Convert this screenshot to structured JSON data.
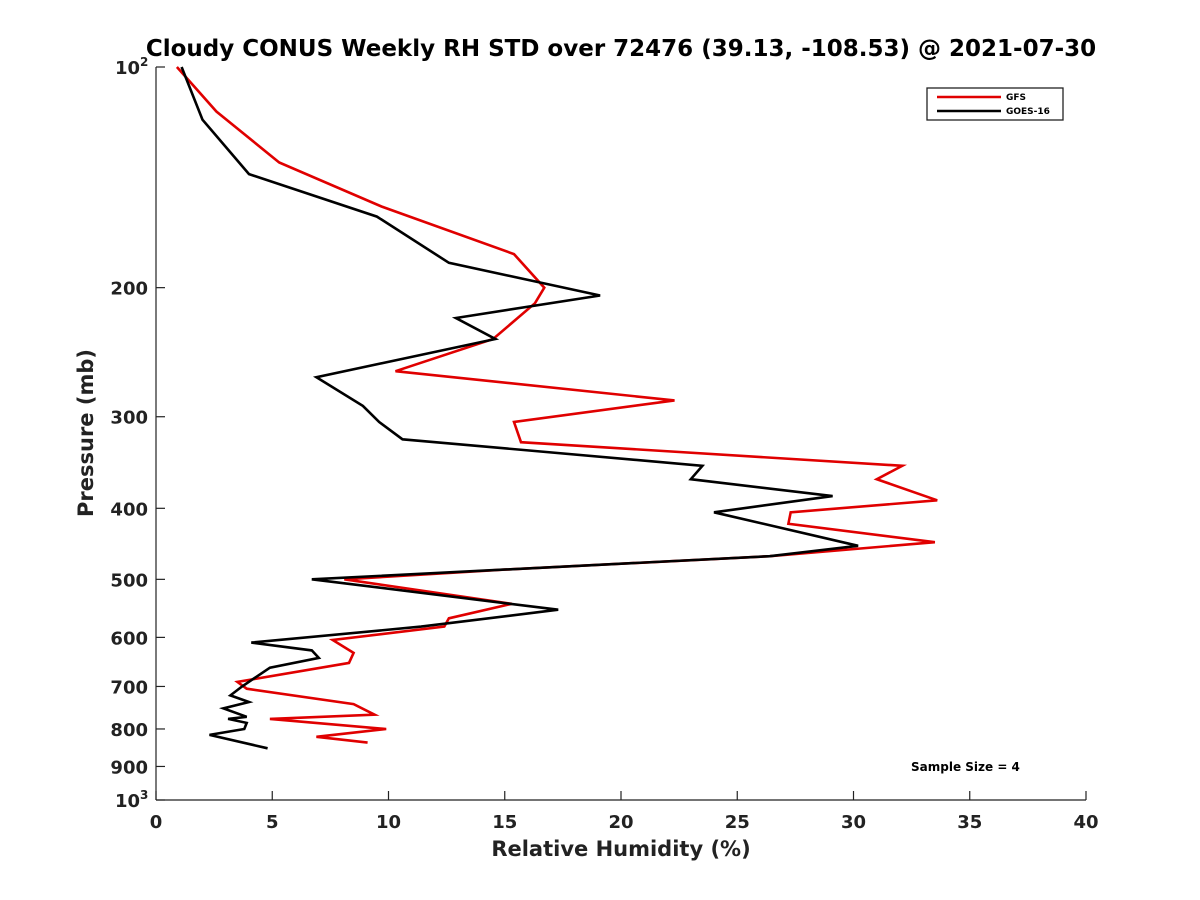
{
  "chart_data": {
    "type": "line",
    "title": "Cloudy CONUS Weekly RH STD over 72476 (39.13, -108.53) @ 2021-07-30",
    "xlabel": "Relative Humidity (%)",
    "ylabel": "Pressure (mb)",
    "xlim": [
      0,
      40
    ],
    "ylim": [
      100,
      1000
    ],
    "yscale": "log",
    "y_reversed": true,
    "grid": false,
    "legend_position": "top-right",
    "x_ticks": [
      0,
      5,
      10,
      15,
      20,
      25,
      30,
      35,
      40
    ],
    "x_tick_labels": [
      "0",
      "5",
      "10",
      "15",
      "20",
      "25",
      "30",
      "35",
      "40"
    ],
    "y_ticks": [
      100,
      200,
      300,
      400,
      500,
      600,
      700,
      800,
      900,
      1000
    ],
    "y_tick_labels": [
      {
        "base": "10",
        "sup": "2"
      },
      {
        "base": "200"
      },
      {
        "base": "300"
      },
      {
        "base": "400"
      },
      {
        "base": "500"
      },
      {
        "base": "600"
      },
      {
        "base": "700"
      },
      {
        "base": "800"
      },
      {
        "base": "900"
      },
      {
        "base": "10",
        "sup": "3"
      }
    ],
    "series": [
      {
        "name": "GFS",
        "color": "#e00000",
        "points": [
          [
            0.9,
            100
          ],
          [
            2.6,
            115
          ],
          [
            5.3,
            135
          ],
          [
            9.7,
            155
          ],
          [
            15.4,
            180
          ],
          [
            16.7,
            200
          ],
          [
            16.3,
            210
          ],
          [
            14.5,
            235
          ],
          [
            10.3,
            260
          ],
          [
            22.3,
            285
          ],
          [
            15.4,
            305
          ],
          [
            15.7,
            325
          ],
          [
            32.1,
            350
          ],
          [
            31.0,
            365
          ],
          [
            33.6,
            390
          ],
          [
            27.3,
            405
          ],
          [
            27.2,
            420
          ],
          [
            33.5,
            445
          ],
          [
            26.4,
            465
          ],
          [
            15.0,
            485
          ],
          [
            8.1,
            500
          ],
          [
            15.3,
            540
          ],
          [
            12.6,
            565
          ],
          [
            12.4,
            580
          ],
          [
            7.6,
            605
          ],
          [
            8.5,
            630
          ],
          [
            8.3,
            650
          ],
          [
            3.5,
            690
          ],
          [
            3.9,
            705
          ],
          [
            8.5,
            740
          ],
          [
            9.4,
            765
          ],
          [
            4.9,
            775
          ],
          [
            9.9,
            800
          ],
          [
            6.9,
            820
          ],
          [
            9.1,
            835
          ]
        ]
      },
      {
        "name": "GOES-16",
        "color": "#000000",
        "points": [
          [
            1.1,
            100
          ],
          [
            2.0,
            118
          ],
          [
            4.0,
            140
          ],
          [
            9.5,
            160
          ],
          [
            12.6,
            185
          ],
          [
            19.1,
            205
          ],
          [
            12.9,
            220
          ],
          [
            14.6,
            235
          ],
          [
            6.9,
            265
          ],
          [
            8.9,
            290
          ],
          [
            9.6,
            305
          ],
          [
            10.6,
            322
          ],
          [
            23.5,
            350
          ],
          [
            23.0,
            365
          ],
          [
            29.1,
            385
          ],
          [
            24.0,
            405
          ],
          [
            30.2,
            450
          ],
          [
            26.4,
            465
          ],
          [
            6.7,
            500
          ],
          [
            17.3,
            550
          ],
          [
            11.4,
            580
          ],
          [
            4.1,
            610
          ],
          [
            6.7,
            625
          ],
          [
            7.0,
            640
          ],
          [
            4.9,
            660
          ],
          [
            3.7,
            700
          ],
          [
            3.2,
            720
          ],
          [
            4.0,
            735
          ],
          [
            2.9,
            750
          ],
          [
            3.9,
            770
          ],
          [
            3.1,
            775
          ],
          [
            3.9,
            785
          ],
          [
            3.8,
            800
          ],
          [
            2.3,
            815
          ],
          [
            4.8,
            850
          ]
        ]
      }
    ],
    "legend": [
      {
        "label": "GFS",
        "color": "#e00000"
      },
      {
        "label": "GOES-16",
        "color": "#000000"
      }
    ],
    "annotations": [
      {
        "text": "Sample Size = 4"
      }
    ]
  }
}
